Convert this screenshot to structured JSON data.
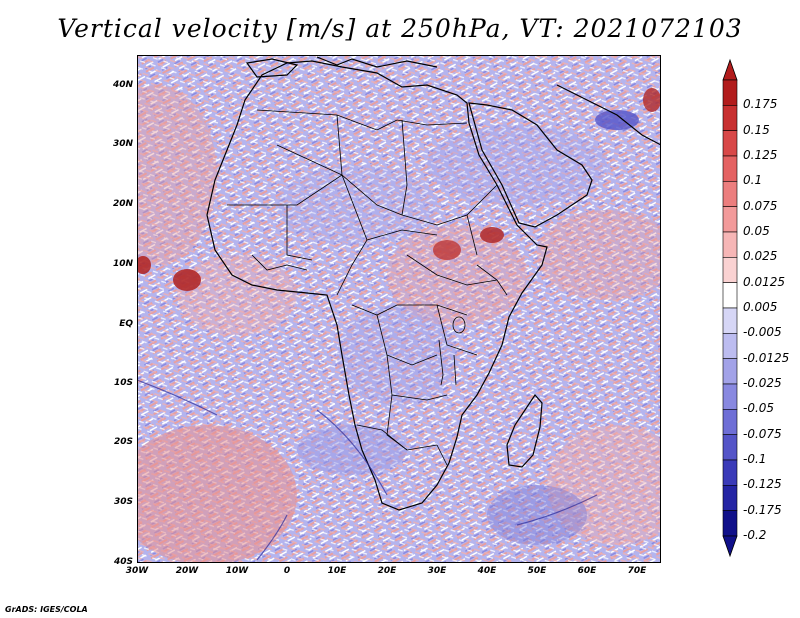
{
  "title": "Vertical velocity [m/s] at 250hPa, VT: 2021072103",
  "footer": "GrADS: IGES/COLA",
  "map": {
    "region": "Africa",
    "lat_labels": [
      "40N",
      "30N",
      "20N",
      "10N",
      "EQ",
      "10S",
      "20S",
      "30S",
      "40S"
    ],
    "lon_labels": [
      "30W",
      "20W",
      "10W",
      "0",
      "10E",
      "20E",
      "30E",
      "40E",
      "50E",
      "60E",
      "70E"
    ]
  },
  "colorbar": {
    "labels": [
      "0.175",
      "0.15",
      "0.125",
      "0.1",
      "0.075",
      "0.05",
      "0.025",
      "0.0125",
      "0.005",
      "-0.005",
      "-0.0125",
      "-0.025",
      "-0.05",
      "-0.075",
      "-0.1",
      "-0.125",
      "-0.175",
      "-0.2"
    ],
    "colors": [
      "#b21c1c",
      "#c83030",
      "#d84848",
      "#e46262",
      "#ec7e7e",
      "#f29a9a",
      "#f6b6b6",
      "#fad2d2",
      "#ffffff",
      "#d6d6f6",
      "#bcbcf0",
      "#a2a2e8",
      "#8888e0",
      "#6e6ed6",
      "#5454c8",
      "#3a3ab8",
      "#2424a4",
      "#10108a"
    ]
  }
}
